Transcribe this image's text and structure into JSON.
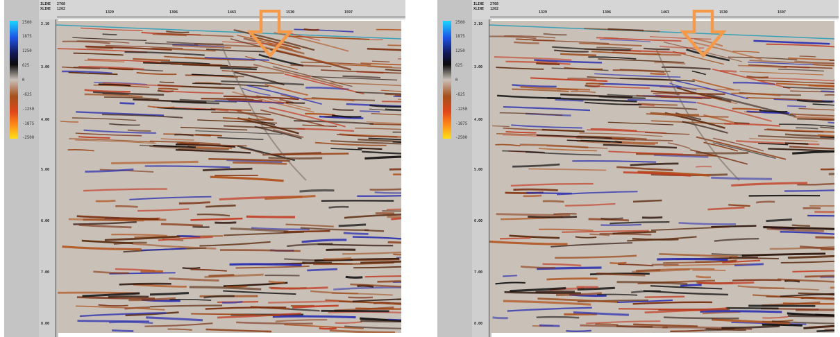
{
  "panels": [
    {
      "header": {
        "row1_key": "ILINE",
        "row1_val": "2768",
        "row2_key": "XLINE",
        "row2_val": "1262"
      },
      "xticks": [
        "1329",
        "1396",
        "1463",
        "1530",
        "1597"
      ],
      "yticks": [
        "2.10",
        "3.00",
        "4.00",
        "5.00",
        "6.00",
        "7.00",
        "8.00"
      ],
      "colorbar": [
        "2500",
        "1875",
        "1250",
        "625",
        "0",
        "-625",
        "-1250",
        "-1875",
        "-2500"
      ],
      "arrow_color": "#f59a4a"
    },
    {
      "header": {
        "row1_key": "ILINE",
        "row1_val": "2768",
        "row2_key": "XLINE",
        "row2_val": "1262"
      },
      "xticks": [
        "1329",
        "1396",
        "1463",
        "1530",
        "1597"
      ],
      "yticks": [
        "2.10",
        "3.00",
        "4.00",
        "5.00",
        "6.00",
        "7.00",
        "8.00"
      ],
      "colorbar": [
        "2500",
        "1875",
        "1250",
        "625",
        "0",
        "-625",
        "-1250",
        "-1875",
        "-2500"
      ],
      "arrow_color": "#f59a4a"
    }
  ]
}
